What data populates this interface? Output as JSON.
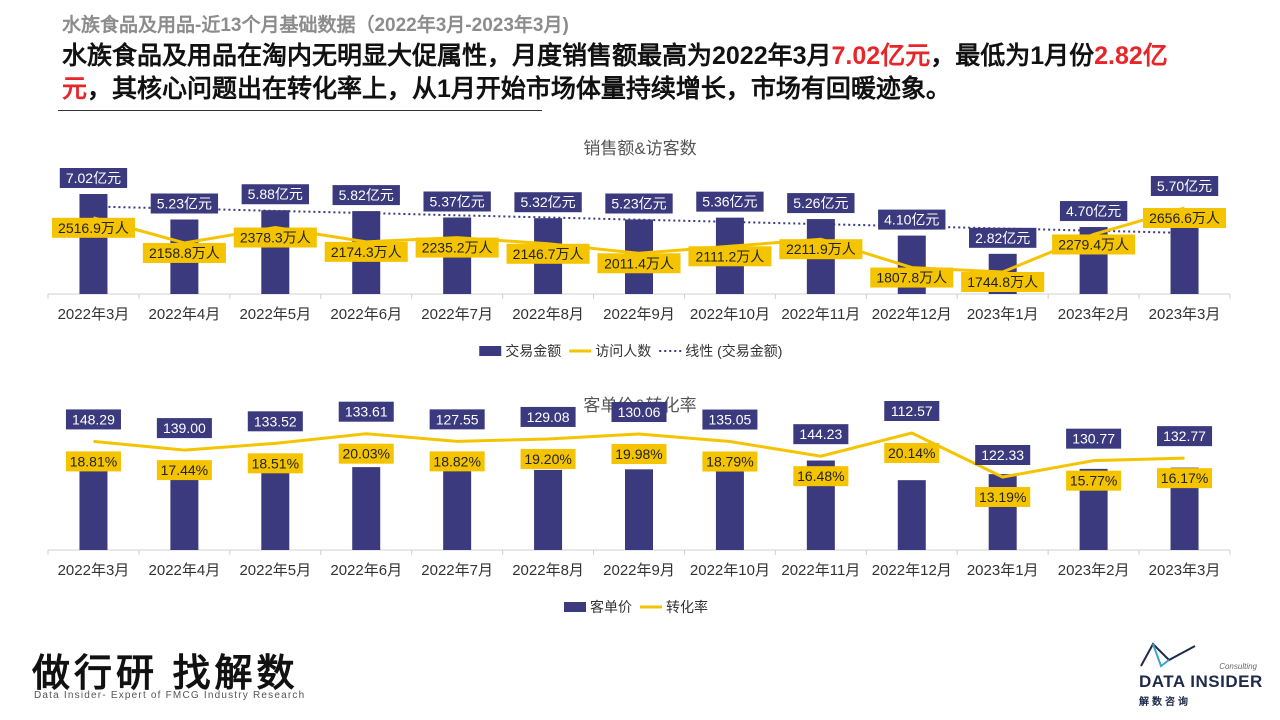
{
  "header": {
    "subtitle": "水族食品及用品-近13个月基础数据（2022年3月-2023年3月)",
    "headline_parts": [
      "水族食品及用品在淘内无明显大促属性，月度销售额最高为2022年3月",
      "7.02亿元",
      "，最低为1月份",
      "2.82亿元",
      "，其核心问题出在转化率上，从1月开始市场体量持续增长，市场有回暖迹象。"
    ]
  },
  "colors": {
    "bar": "#3b3a7e",
    "line": "#f5c400",
    "label_box": "#3b3a7e",
    "trend": "#3b3a7e",
    "highlight": "#e8262a"
  },
  "chart_data": [
    {
      "type": "bar",
      "title": "销售额&访客数",
      "categories": [
        "2022年3月",
        "2022年4月",
        "2022年5月",
        "2022年6月",
        "2022年7月",
        "2022年8月",
        "2022年9月",
        "2022年10月",
        "2022年11月",
        "2022年12月",
        "2023年1月",
        "2023年2月",
        "2023年3月"
      ],
      "series": [
        {
          "name": "交易金额",
          "type": "bar",
          "values": [
            7.02,
            5.23,
            5.88,
            5.82,
            5.37,
            5.32,
            5.23,
            5.36,
            5.26,
            4.1,
            2.82,
            4.7,
            5.7
          ],
          "labels": [
            "7.02亿元",
            "5.23亿元",
            "5.88亿元",
            "5.82亿元",
            "5.37亿元",
            "5.32亿元",
            "5.23亿元",
            "5.36亿元",
            "5.26亿元",
            "4.10亿元",
            "2.82亿元",
            "4.70亿元",
            "5.70亿元"
          ]
        },
        {
          "name": "访问人数",
          "type": "line",
          "values": [
            2516.9,
            2158.8,
            2378.3,
            2174.3,
            2235.2,
            2146.7,
            2011.4,
            2111.2,
            2211.9,
            1807.8,
            1744.8,
            2279.4,
            2656.6
          ],
          "labels": [
            "2516.9万人",
            "2158.8万人",
            "2378.3万人",
            "2174.3万人",
            "2235.2万人",
            "2146.7万人",
            "2011.4万人",
            "2111.2万人",
            "2211.9万人",
            "1807.8万人",
            "1744.8万人",
            "2279.4万人",
            "2656.6万人"
          ]
        },
        {
          "name": "线性 (交易金额)",
          "type": "trendline"
        }
      ],
      "legend": "bottom"
    },
    {
      "type": "bar",
      "title": "客单价&转化率",
      "categories": [
        "2022年3月",
        "2022年4月",
        "2022年5月",
        "2022年6月",
        "2022年7月",
        "2022年8月",
        "2022年9月",
        "2022年10月",
        "2022年11月",
        "2022年12月",
        "2023年1月",
        "2023年2月",
        "2023年3月"
      ],
      "series": [
        {
          "name": "客单价",
          "type": "bar",
          "values": [
            148.29,
            139.0,
            133.52,
            133.61,
            127.55,
            129.08,
            130.06,
            135.05,
            144.23,
            112.57,
            122.33,
            130.77,
            132.77
          ],
          "labels": [
            "148.29",
            "139.00",
            "133.52",
            "133.61",
            "127.55",
            "129.08",
            "130.06",
            "135.05",
            "144.23",
            "112.57",
            "122.33",
            "130.77",
            "132.77"
          ]
        },
        {
          "name": "转化率",
          "type": "line",
          "values": [
            18.81,
            17.44,
            18.51,
            20.03,
            18.82,
            19.2,
            19.98,
            18.79,
            16.48,
            20.14,
            13.19,
            15.77,
            16.17
          ],
          "labels": [
            "18.81%",
            "17.44%",
            "18.51%",
            "20.03%",
            "18.82%",
            "19.20%",
            "19.98%",
            "18.79%",
            "16.48%",
            "20.14%",
            "13.19%",
            "15.77%",
            "16.17%"
          ]
        }
      ],
      "legend": "bottom"
    }
  ],
  "footer": {
    "brand_cn": "做行研 找解数",
    "brand_en": "Data Insider- Expert of FMCG Industry Research",
    "logo_consulting": "Consulting",
    "logo_name": "DATA INSIDER",
    "logo_cn": "解数咨询"
  }
}
